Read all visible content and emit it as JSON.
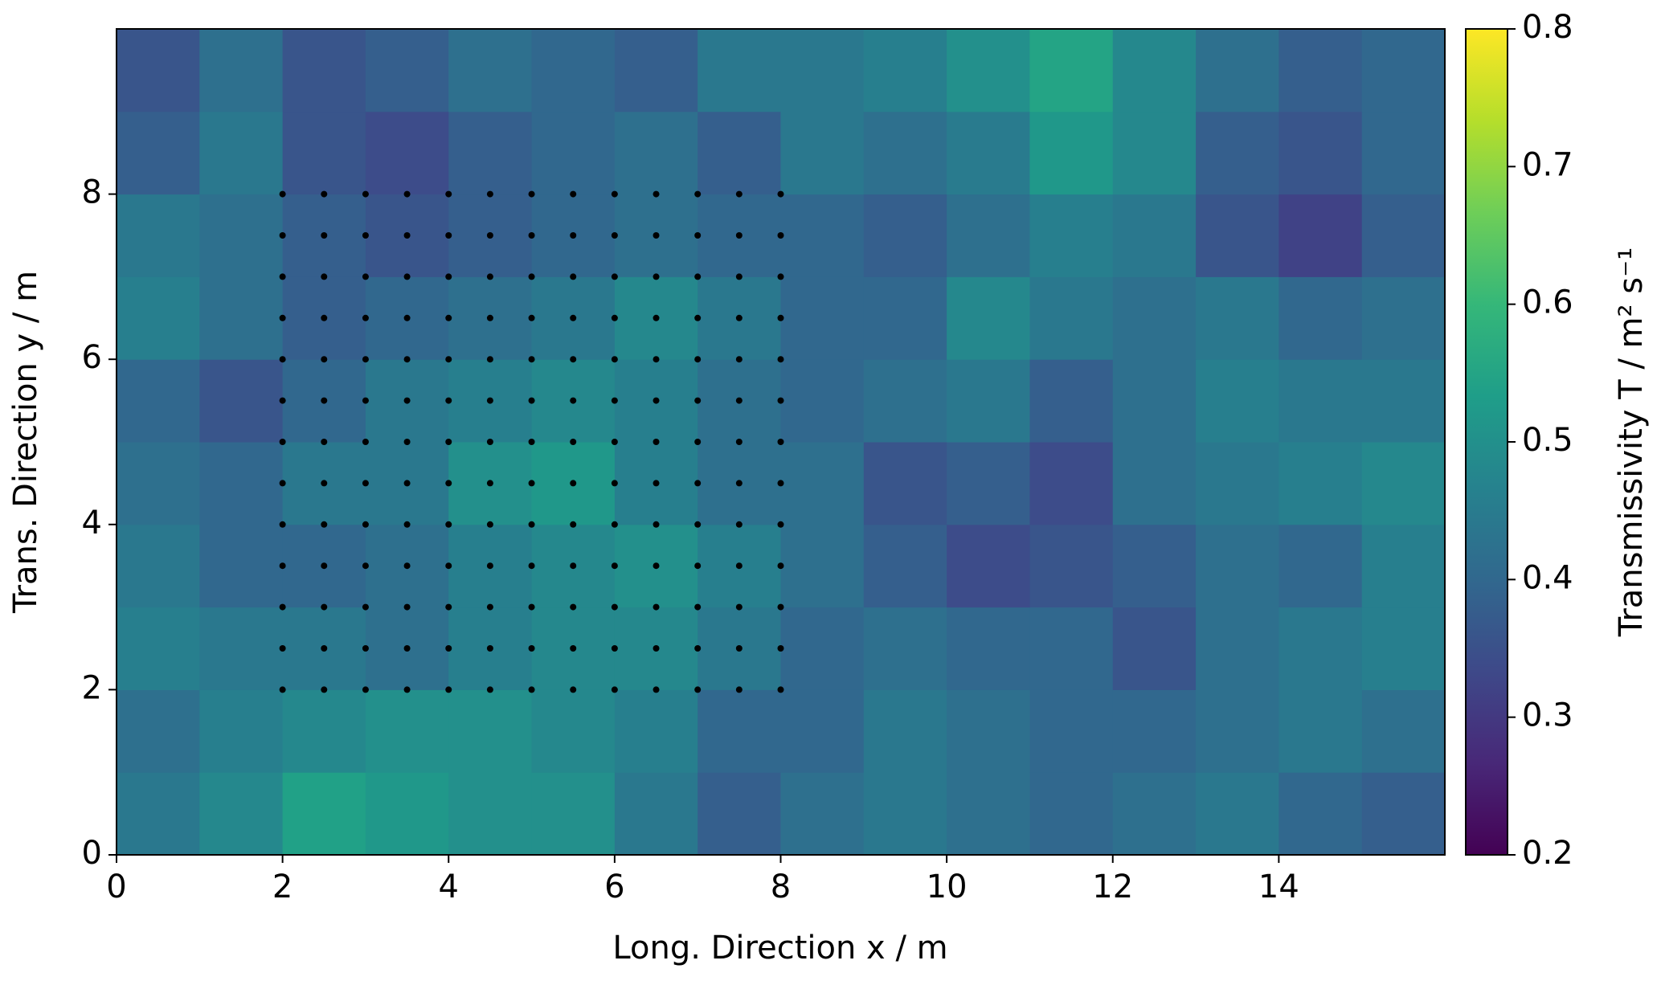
{
  "chart_data": {
    "type": "heatmap",
    "xlabel": "Long. Direction x / m",
    "ylabel": "Trans. Direction y / m",
    "colorbar_label": "Transmissivity T / m² s⁻¹",
    "colormap": "viridis",
    "xlim": [
      0,
      16
    ],
    "xticks": [
      0,
      2,
      4,
      6,
      8,
      10,
      12,
      14
    ],
    "ylim": [
      0,
      10
    ],
    "yticks": [
      0,
      2,
      4,
      6,
      8
    ],
    "clim": [
      0.2,
      0.8
    ],
    "cticks": [
      0.2,
      0.3,
      0.4,
      0.5,
      0.6,
      0.7,
      0.8
    ],
    "z": [
      [
        0.44,
        0.48,
        0.54,
        0.52,
        0.5,
        0.5,
        0.44,
        0.38,
        0.42,
        0.44,
        0.42,
        0.4,
        0.42,
        0.44,
        0.4,
        0.38
      ],
      [
        0.42,
        0.46,
        0.48,
        0.5,
        0.5,
        0.48,
        0.46,
        0.4,
        0.4,
        0.44,
        0.42,
        0.4,
        0.4,
        0.42,
        0.44,
        0.42
      ],
      [
        0.46,
        0.44,
        0.44,
        0.42,
        0.46,
        0.48,
        0.48,
        0.44,
        0.4,
        0.42,
        0.4,
        0.4,
        0.36,
        0.42,
        0.44,
        0.46
      ],
      [
        0.44,
        0.4,
        0.4,
        0.42,
        0.46,
        0.48,
        0.5,
        0.46,
        0.42,
        0.38,
        0.34,
        0.36,
        0.38,
        0.42,
        0.4,
        0.46
      ],
      [
        0.42,
        0.4,
        0.44,
        0.44,
        0.5,
        0.52,
        0.46,
        0.42,
        0.42,
        0.36,
        0.38,
        0.34,
        0.42,
        0.44,
        0.46,
        0.48
      ],
      [
        0.4,
        0.36,
        0.4,
        0.44,
        0.46,
        0.48,
        0.46,
        0.42,
        0.4,
        0.42,
        0.44,
        0.38,
        0.42,
        0.46,
        0.44,
        0.44
      ],
      [
        0.46,
        0.42,
        0.38,
        0.4,
        0.42,
        0.44,
        0.48,
        0.44,
        0.4,
        0.4,
        0.48,
        0.44,
        0.42,
        0.44,
        0.4,
        0.42
      ],
      [
        0.44,
        0.42,
        0.38,
        0.36,
        0.38,
        0.4,
        0.42,
        0.4,
        0.4,
        0.38,
        0.42,
        0.46,
        0.44,
        0.36,
        0.32,
        0.38
      ],
      [
        0.38,
        0.44,
        0.36,
        0.34,
        0.38,
        0.4,
        0.42,
        0.38,
        0.44,
        0.42,
        0.45,
        0.52,
        0.48,
        0.38,
        0.36,
        0.4
      ],
      [
        0.36,
        0.42,
        0.36,
        0.38,
        0.42,
        0.4,
        0.38,
        0.44,
        0.44,
        0.46,
        0.5,
        0.55,
        0.48,
        0.42,
        0.38,
        0.4
      ]
    ],
    "points": {
      "color": "#000000",
      "x": [
        2,
        2.5,
        3,
        3.5,
        4,
        4.5,
        5,
        5.5,
        6,
        6.5,
        7,
        7.5,
        8
      ],
      "y": [
        2,
        2.5,
        3,
        3.5,
        4,
        4.5,
        5,
        5.5,
        6,
        6.5,
        7,
        7.5,
        8
      ]
    }
  }
}
